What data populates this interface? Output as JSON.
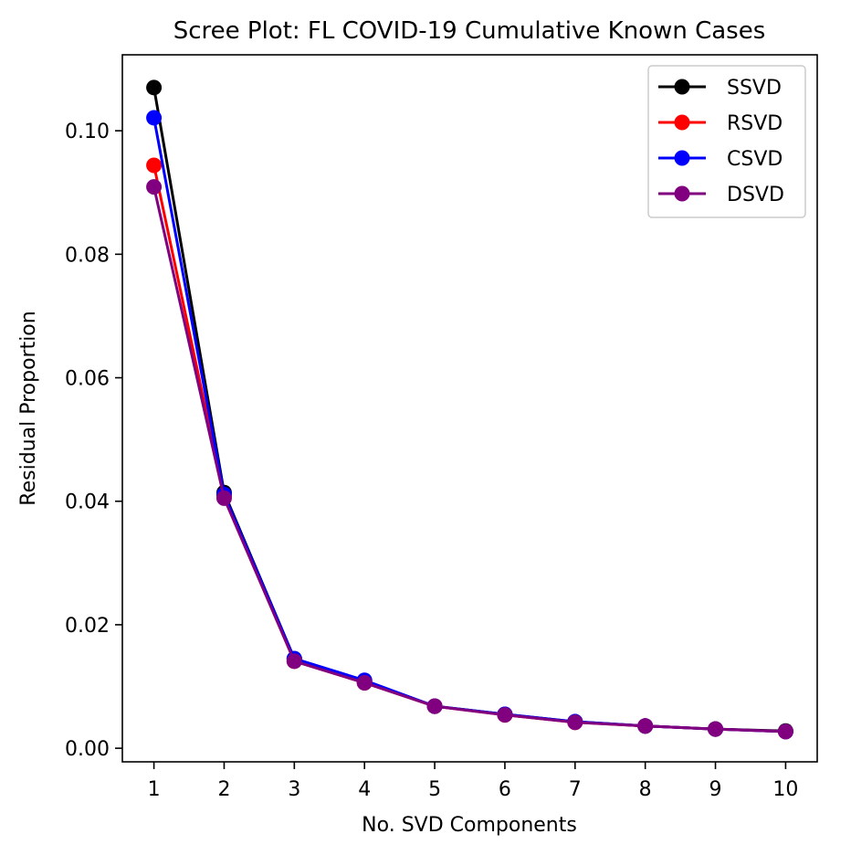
{
  "chart_data": {
    "type": "line",
    "title": "Scree Plot: FL COVID-19 Cumulative Known Cases",
    "xlabel": "No. SVD Components",
    "ylabel": "Residual Proportion",
    "x": [
      1,
      2,
      3,
      4,
      5,
      6,
      7,
      8,
      9,
      10
    ],
    "xlim": [
      0.55,
      10.45
    ],
    "ylim": [
      -0.0022,
      0.1123
    ],
    "x_ticks": [
      1,
      2,
      3,
      4,
      5,
      6,
      7,
      8,
      9,
      10
    ],
    "x_tick_labels": [
      "1",
      "2",
      "3",
      "4",
      "5",
      "6",
      "7",
      "8",
      "9",
      "10"
    ],
    "y_ticks": [
      0.0,
      0.02,
      0.04,
      0.06,
      0.08,
      0.1
    ],
    "y_tick_labels": [
      "0.00",
      "0.02",
      "0.04",
      "0.06",
      "0.08",
      "0.10"
    ],
    "grid": false,
    "legend_position": "top-right",
    "series": [
      {
        "name": "SSVD",
        "color": "#000000",
        "values": [
          0.107,
          0.0414,
          0.0145,
          0.0109,
          0.0068,
          0.0055,
          0.0043,
          0.0036,
          0.0031,
          0.0028
        ]
      },
      {
        "name": "RSVD",
        "color": "#ff0000",
        "values": [
          0.0944,
          0.0408,
          0.0141,
          0.0106,
          0.0068,
          0.0054,
          0.0042,
          0.0036,
          0.0031,
          0.0027
        ]
      },
      {
        "name": "CSVD",
        "color": "#0000ff",
        "values": [
          0.1021,
          0.0411,
          0.0145,
          0.011,
          0.0068,
          0.0055,
          0.0043,
          0.0036,
          0.0031,
          0.0027
        ]
      },
      {
        "name": "DSVD",
        "color": "#800080",
        "values": [
          0.0909,
          0.0405,
          0.0141,
          0.0106,
          0.0068,
          0.0054,
          0.0042,
          0.0036,
          0.0031,
          0.0027
        ]
      }
    ]
  }
}
